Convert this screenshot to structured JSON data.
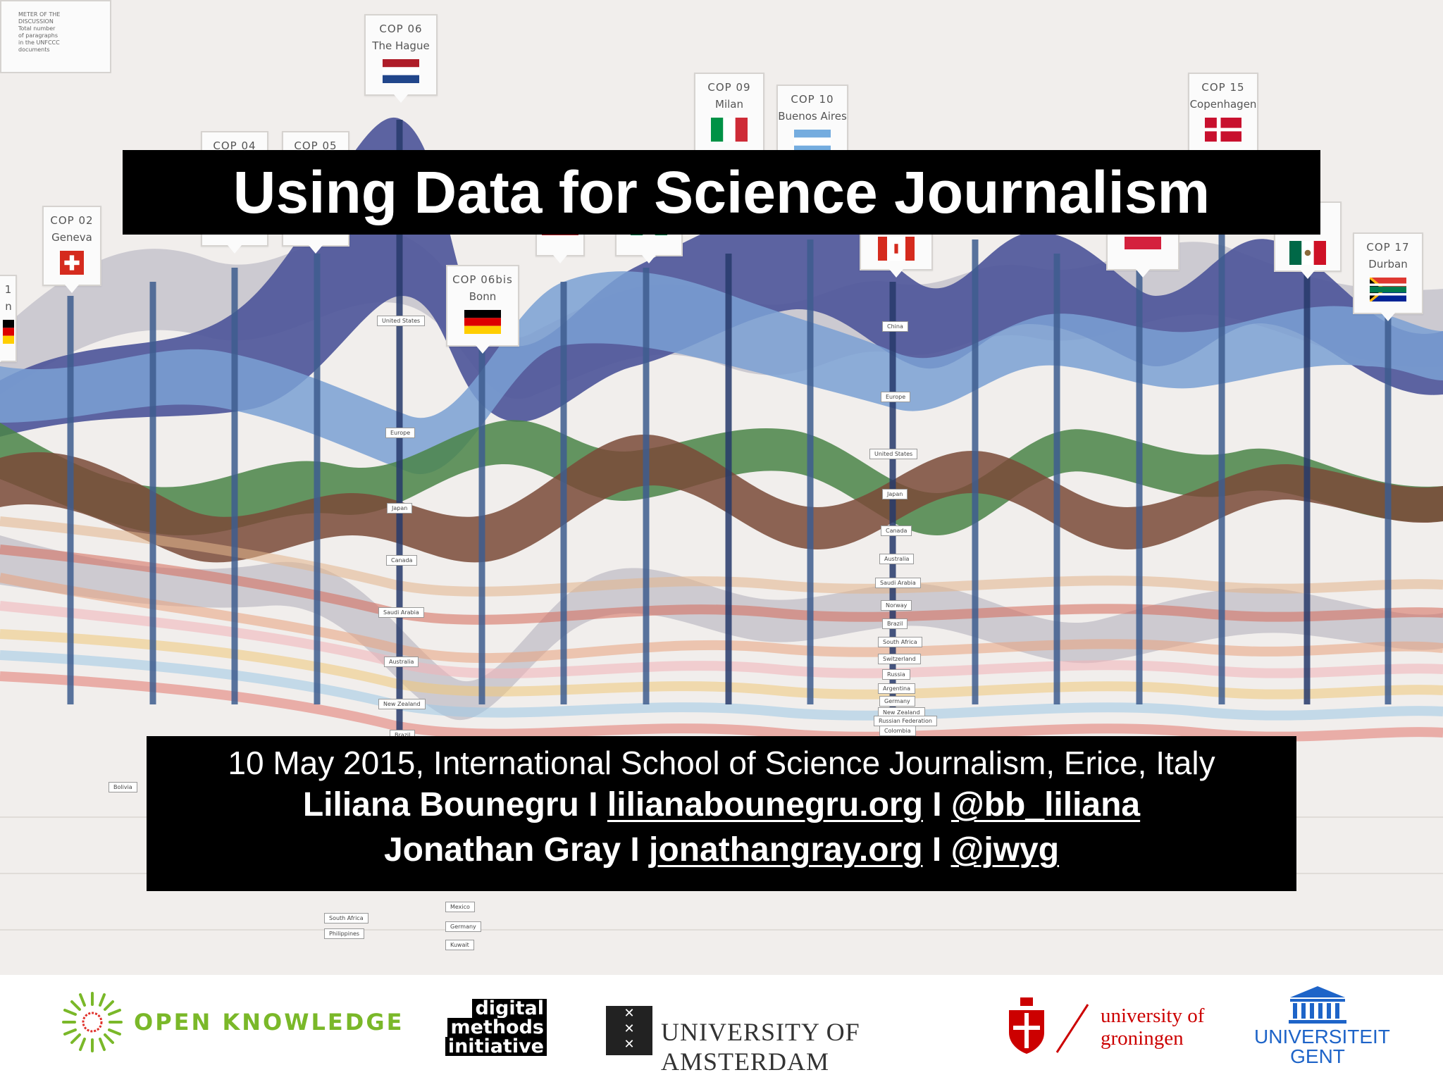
{
  "legend": {
    "lines": [
      "METER OF THE",
      "DISCUSSION",
      "Total number",
      "of paragraphs",
      "in the UNFCCC",
      "documents"
    ]
  },
  "cops": [
    {
      "id": "cop01",
      "line1": "1",
      "line2": "n",
      "flag": [
        "#000000",
        "#dd0000",
        "#ffce00"
      ]
    },
    {
      "id": "cop02",
      "line1": "COP 02",
      "line2": "Geneva",
      "flag": "swiss"
    },
    {
      "id": "cop04",
      "line1": "COP 04",
      "line2": ""
    },
    {
      "id": "cop05",
      "line1": "COP 05",
      "line2": ""
    },
    {
      "id": "cop06",
      "line1": "COP 06",
      "line2": "The Hague",
      "flag": [
        "#ae1c28",
        "#ffffff",
        "#21468b"
      ]
    },
    {
      "id": "cop06bis",
      "line1": "COP 06bis",
      "line2": "Bonn",
      "flag": [
        "#000000",
        "#dd0000",
        "#ffce00"
      ]
    },
    {
      "id": "cop09",
      "line1": "COP 09",
      "line2": "Milan",
      "flag": "italy"
    },
    {
      "id": "cop10",
      "line1": "COP 10",
      "line2": "Buenos Aires",
      "flag": [
        "#74acdf",
        "#ffffff",
        "#74acdf"
      ]
    },
    {
      "id": "cop15",
      "line1": "COP 15",
      "line2": "Copenhagen",
      "flag": "denmark"
    },
    {
      "id": "cop16",
      "line1": "",
      "line2": "",
      "flag": "mexico"
    },
    {
      "id": "cop17",
      "line1": "COP 17",
      "line2": "Durban",
      "flag": "southafrica"
    }
  ],
  "country_tags": [
    "United States",
    "Europe",
    "Japan",
    "Canada",
    "Saudi Arabia",
    "Australia",
    "New Zealand",
    "Brazil",
    "China",
    "Europe",
    "United States",
    "Japan",
    "Canada",
    "Australia",
    "Saudi Arabia",
    "Norway",
    "Brazil",
    "South Africa",
    "Switzerland",
    "Russia",
    "Argentina",
    "Germany",
    "New Zealand",
    "Russian Federation",
    "Colombia",
    "Bolivia",
    "South Africa",
    "Philippines",
    "Mexico",
    "Germany",
    "Kuwait"
  ],
  "title": "Using Data for Science Journalism",
  "info": {
    "line1": "10 May 2015, International School of Science Journalism, Erice, Italy",
    "line2_name": "Liliana Bounegru",
    "line2_sep1": " I ",
    "line2_site": "lilianabounegru.org",
    "line2_sep2": " I ",
    "line2_handle": "@bb_liliana",
    "line3_name": "Jonathan Gray",
    "line3_sep1": " I ",
    "line3_site": "jonathangray.org",
    "line3_sep2": " I ",
    "line3_handle": "@jwyg"
  },
  "footer": {
    "open_knowledge": "OPEN KNOWLEDGE",
    "dmi_1": "digital",
    "dmi_2": "methods",
    "dmi_3": "initiative",
    "uva": "UNIVERSITY OF AMSTERDAM",
    "rug_1": "university of",
    "rug_2": "groningen",
    "ugent_1": "UNIVERSITEIT",
    "ugent_2": "GENT"
  },
  "colors": {
    "open_knowledge_green": "#7ab829",
    "rug_red": "#cc0000",
    "ugent_blue": "#1e64c8",
    "title_bg": "#000000",
    "stream_navy": "#3f478f",
    "stream_blue": "#6f95cc",
    "stream_green": "#3d7a3e",
    "stream_brown": "#6a3b2a"
  }
}
